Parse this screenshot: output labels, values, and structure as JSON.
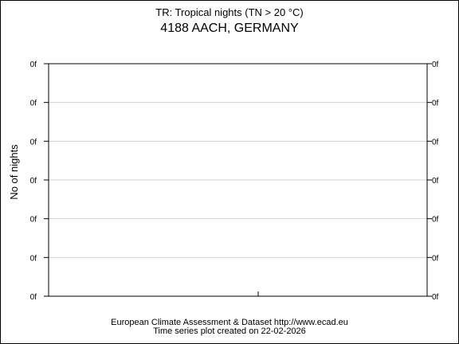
{
  "header": {
    "index_title": "TR: Tropical nights (TN > 20 °C)",
    "station": "4188 AACH, GERMANY"
  },
  "footer": {
    "source_line": "European Climate Assessment & Dataset  http://www.ecad.eu",
    "created_line": "Time series plot created on 22-02-2026"
  },
  "chart_data": {
    "type": "line",
    "title": "TR: Tropical nights (TN > 20 °C)",
    "subtitle": "4188 AACH, GERMANY",
    "xlabel": "",
    "ylabel": "No of nights",
    "y_tick_labels": [
      "0f",
      "0f",
      "0f",
      "0f",
      "0f",
      "0f",
      "0f"
    ],
    "x_tick_labels": [],
    "series": [],
    "grid": true,
    "legend": "none",
    "colors": {
      "frame": "#000000",
      "grid": "#d3d3d3",
      "text": "#000000"
    }
  }
}
